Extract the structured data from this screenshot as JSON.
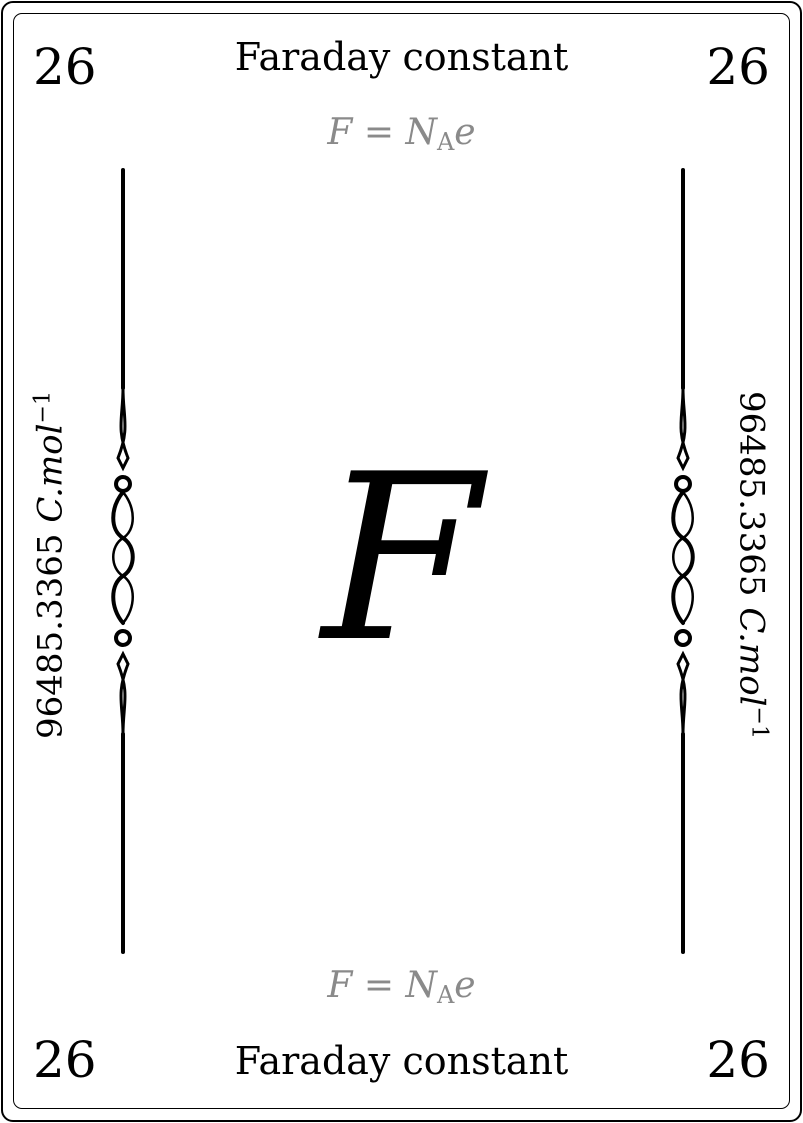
{
  "card": {
    "number": "26",
    "title": "Faraday constant",
    "symbol": "F",
    "formula": {
      "lhs": "F",
      "equals": "=",
      "n": "N",
      "sub": "A",
      "e": "e"
    },
    "value": "96485.3365",
    "unit_main": "C.mol",
    "unit_exponent": "−1"
  }
}
